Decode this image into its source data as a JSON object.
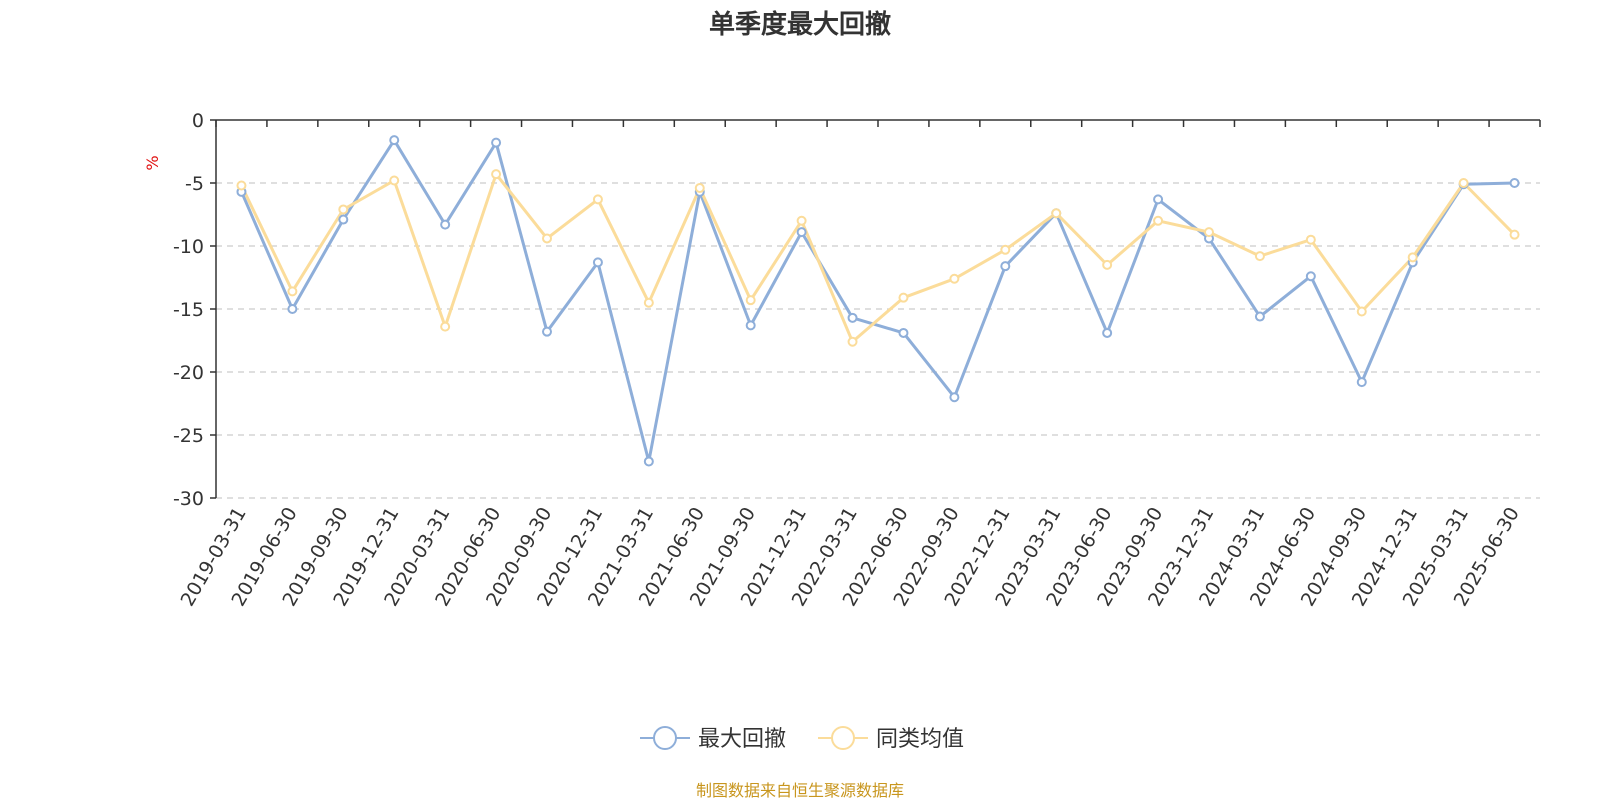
{
  "chart_data": {
    "type": "line",
    "title": "单季度最大回撤",
    "ylabel": "%",
    "ylim": [
      -30,
      0
    ],
    "yticks": [
      0,
      -5,
      -10,
      -15,
      -20,
      -25,
      -30
    ],
    "grid": true,
    "legend_position": "bottom-center",
    "categories": [
      "2019-03-31",
      "2019-06-30",
      "2019-09-30",
      "2019-12-31",
      "2020-03-31",
      "2020-06-30",
      "2020-09-30",
      "2020-12-31",
      "2021-03-31",
      "2021-06-30",
      "2021-09-30",
      "2021-12-31",
      "2022-03-31",
      "2022-06-30",
      "2022-09-30",
      "2022-12-31",
      "2023-03-31",
      "2023-06-30",
      "2023-09-30",
      "2023-12-31",
      "2024-03-31",
      "2024-06-30",
      "2024-09-30",
      "2024-12-31",
      "2025-03-31",
      "2025-06-30"
    ],
    "series": [
      {
        "name": "最大回撤",
        "color": "#8eaed9",
        "values": [
          -5.7,
          -15.0,
          -7.9,
          -1.6,
          -8.3,
          -1.8,
          -16.8,
          -11.3,
          -27.1,
          -5.7,
          -16.3,
          -8.9,
          -15.7,
          -16.9,
          -22.0,
          -11.6,
          -7.4,
          -16.9,
          -6.3,
          -9.4,
          -15.6,
          -12.4,
          -20.8,
          -11.3,
          -5.1,
          -5.0
        ]
      },
      {
        "name": "同类均值",
        "color": "#fbdc9a",
        "values": [
          -5.2,
          -13.6,
          -7.1,
          -4.8,
          -16.4,
          -4.3,
          -9.4,
          -6.3,
          -14.5,
          -5.4,
          -14.3,
          -8.0,
          -17.6,
          -14.1,
          -12.6,
          -10.3,
          -7.4,
          -11.5,
          -8.0,
          -8.9,
          -10.8,
          -9.5,
          -15.2,
          -10.9,
          -5.0,
          -9.1
        ]
      }
    ]
  },
  "source": "制图数据来自恒生聚源数据库"
}
